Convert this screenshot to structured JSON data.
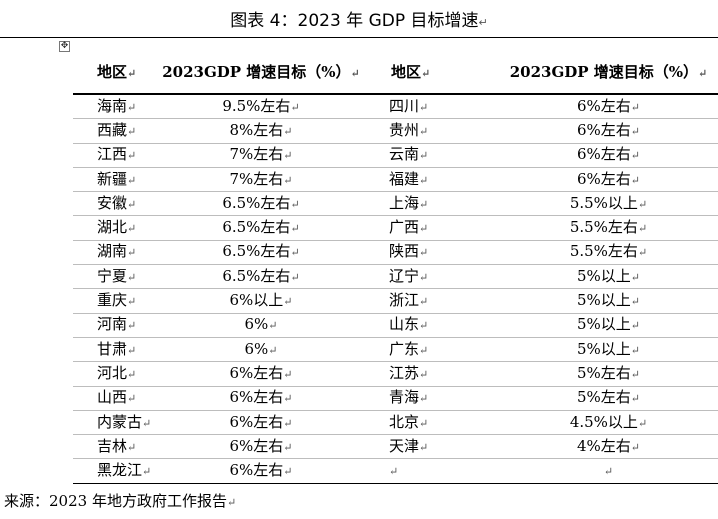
{
  "title": "图表 4：2023 年 GDP 目标增速",
  "headers": {
    "region_left": "地区",
    "target_left": "2023GDP 增速目标（%）",
    "region_right": "地区",
    "target_right": "2023GDP 增速目标（%）"
  },
  "rows": [
    {
      "r1": "海南",
      "v1": "9.5%左右",
      "r2": "四川",
      "v2": "6%左右"
    },
    {
      "r1": "西藏",
      "v1": "8%左右",
      "r2": "贵州",
      "v2": "6%左右"
    },
    {
      "r1": "江西",
      "v1": "7%左右",
      "r2": "云南",
      "v2": "6%左右"
    },
    {
      "r1": "新疆",
      "v1": "7%左右",
      "r2": "福建",
      "v2": "6%左右"
    },
    {
      "r1": "安徽",
      "v1": "6.5%左右",
      "r2": "上海",
      "v2": "5.5%以上"
    },
    {
      "r1": "湖北",
      "v1": "6.5%左右",
      "r2": "广西",
      "v2": "5.5%左右"
    },
    {
      "r1": "湖南",
      "v1": "6.5%左右",
      "r2": "陕西",
      "v2": "5.5%左右"
    },
    {
      "r1": "宁夏",
      "v1": "6.5%左右",
      "r2": "辽宁",
      "v2": "5%以上"
    },
    {
      "r1": "重庆",
      "v1": "6%以上",
      "r2": "浙江",
      "v2": "5%以上"
    },
    {
      "r1": "河南",
      "v1": "6%",
      "r2": "山东",
      "v2": "5%以上"
    },
    {
      "r1": "甘肃",
      "v1": "6%",
      "r2": "广东",
      "v2": "5%以上"
    },
    {
      "r1": "河北",
      "v1": "6%左右",
      "r2": "江苏",
      "v2": "5%左右"
    },
    {
      "r1": "山西",
      "v1": "6%左右",
      "r2": "青海",
      "v2": "5%左右"
    },
    {
      "r1": "内蒙古",
      "v1": "6%左右",
      "r2": "北京",
      "v2": "4.5%以上"
    },
    {
      "r1": "吉林",
      "v1": "6%左右",
      "r2": "天津",
      "v2": "4%左右"
    },
    {
      "r1": "黑龙江",
      "v1": "6%左右",
      "r2": "",
      "v2": ""
    }
  ],
  "source": "来源：2023 年地方政府工作报告",
  "paragraph_mark": "↵",
  "icons": {
    "table_anchor": "move-handle-icon"
  }
}
